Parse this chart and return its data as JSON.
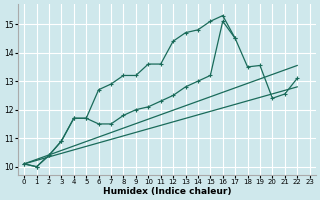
{
  "xlabel": "Humidex (Indice chaleur)",
  "ylabel": "",
  "background_color": "#cfe8ec",
  "grid_color": "#ffffff",
  "line_color": "#1a6b5a",
  "xlim": [
    -0.5,
    23.5
  ],
  "ylim": [
    9.7,
    15.7
  ],
  "xticks": [
    0,
    1,
    2,
    3,
    4,
    5,
    6,
    7,
    8,
    9,
    10,
    11,
    12,
    13,
    14,
    15,
    16,
    17,
    18,
    19,
    20,
    21,
    22,
    23
  ],
  "yticks": [
    10,
    11,
    12,
    13,
    14,
    15
  ],
  "series": [
    {
      "x": [
        0,
        1,
        2,
        3,
        4,
        5,
        6,
        7,
        8,
        9,
        10,
        11,
        12,
        13,
        14,
        15,
        16,
        17
      ],
      "y": [
        10.1,
        10.0,
        10.4,
        10.9,
        11.7,
        11.7,
        12.7,
        12.9,
        13.2,
        13.2,
        13.6,
        13.6,
        14.4,
        14.7,
        14.8,
        15.1,
        15.3,
        14.5
      ],
      "has_markers": true
    },
    {
      "x": [
        0,
        1,
        2,
        3,
        4,
        5,
        6,
        7,
        8,
        9,
        10,
        11,
        12,
        13,
        14,
        15,
        16,
        17,
        18,
        19,
        20,
        21,
        22
      ],
      "y": [
        10.1,
        10.0,
        10.4,
        10.9,
        11.7,
        11.7,
        11.5,
        11.5,
        11.8,
        12.0,
        12.1,
        12.3,
        12.5,
        12.8,
        13.0,
        13.2,
        15.1,
        14.5,
        13.5,
        13.55,
        12.4,
        12.55,
        13.1
      ],
      "has_markers": true
    },
    {
      "x": [
        0,
        22
      ],
      "y": [
        10.1,
        13.55
      ],
      "has_markers": false
    },
    {
      "comment": "straight line 2 - from (0,10.1) to (22,12.8)",
      "x": [
        0,
        22
      ],
      "y": [
        10.1,
        12.8
      ],
      "has_markers": false
    }
  ],
  "marker": "+",
  "marker_size": 3,
  "linewidth": 0.9
}
